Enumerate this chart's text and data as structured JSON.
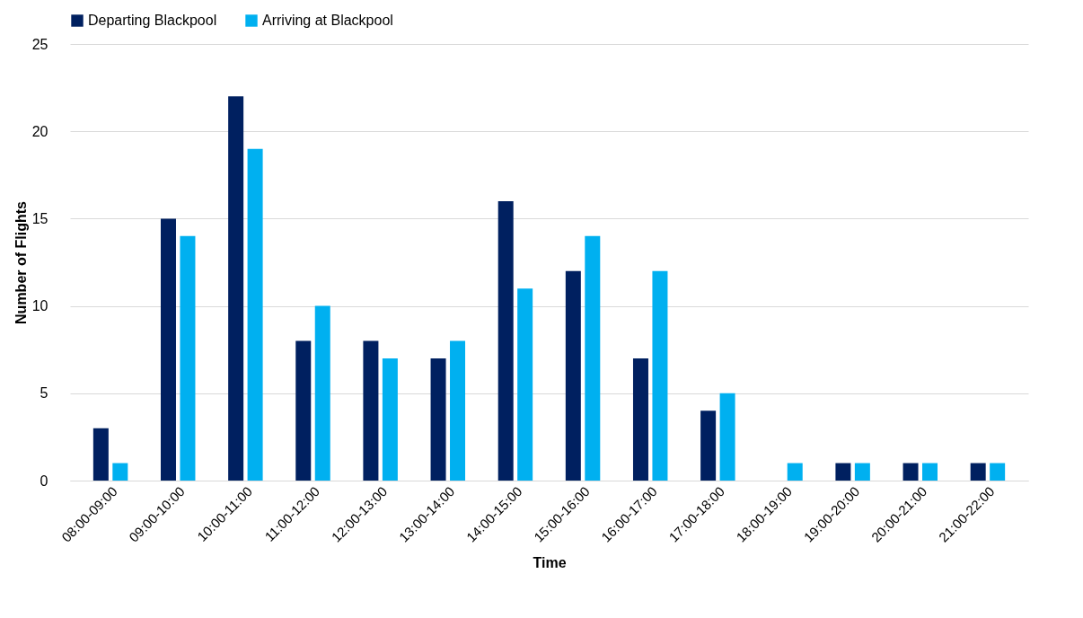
{
  "chart_data": {
    "type": "bar",
    "xlabel": "Time",
    "ylabel": "Number of Flights",
    "categories": [
      "08:00-09:00",
      "09:00-10:00",
      "10:00-11:00",
      "11:00-12:00",
      "12:00-13:00",
      "13:00-14:00",
      "14:00-15:00",
      "15:00-16:00",
      "16:00-17:00",
      "17:00-18:00",
      "18:00-19:00",
      "19:00-20:00",
      "20:00-21:00",
      "21:00-22:00"
    ],
    "series": [
      {
        "name": "Departing Blackpool",
        "color": "#002060",
        "values": [
          3,
          15,
          22,
          8,
          8,
          7,
          16,
          12,
          7,
          4,
          0,
          1,
          1,
          1
        ]
      },
      {
        "name": "Arriving at Blackpool",
        "color": "#00b0f0",
        "values": [
          1,
          14,
          19,
          10,
          7,
          8,
          11,
          14,
          12,
          5,
          1,
          1,
          1,
          1
        ]
      }
    ],
    "ylim": [
      0,
      25
    ],
    "yticks": [
      0,
      5,
      10,
      15,
      20,
      25
    ],
    "grid": "y",
    "legend": "top"
  }
}
